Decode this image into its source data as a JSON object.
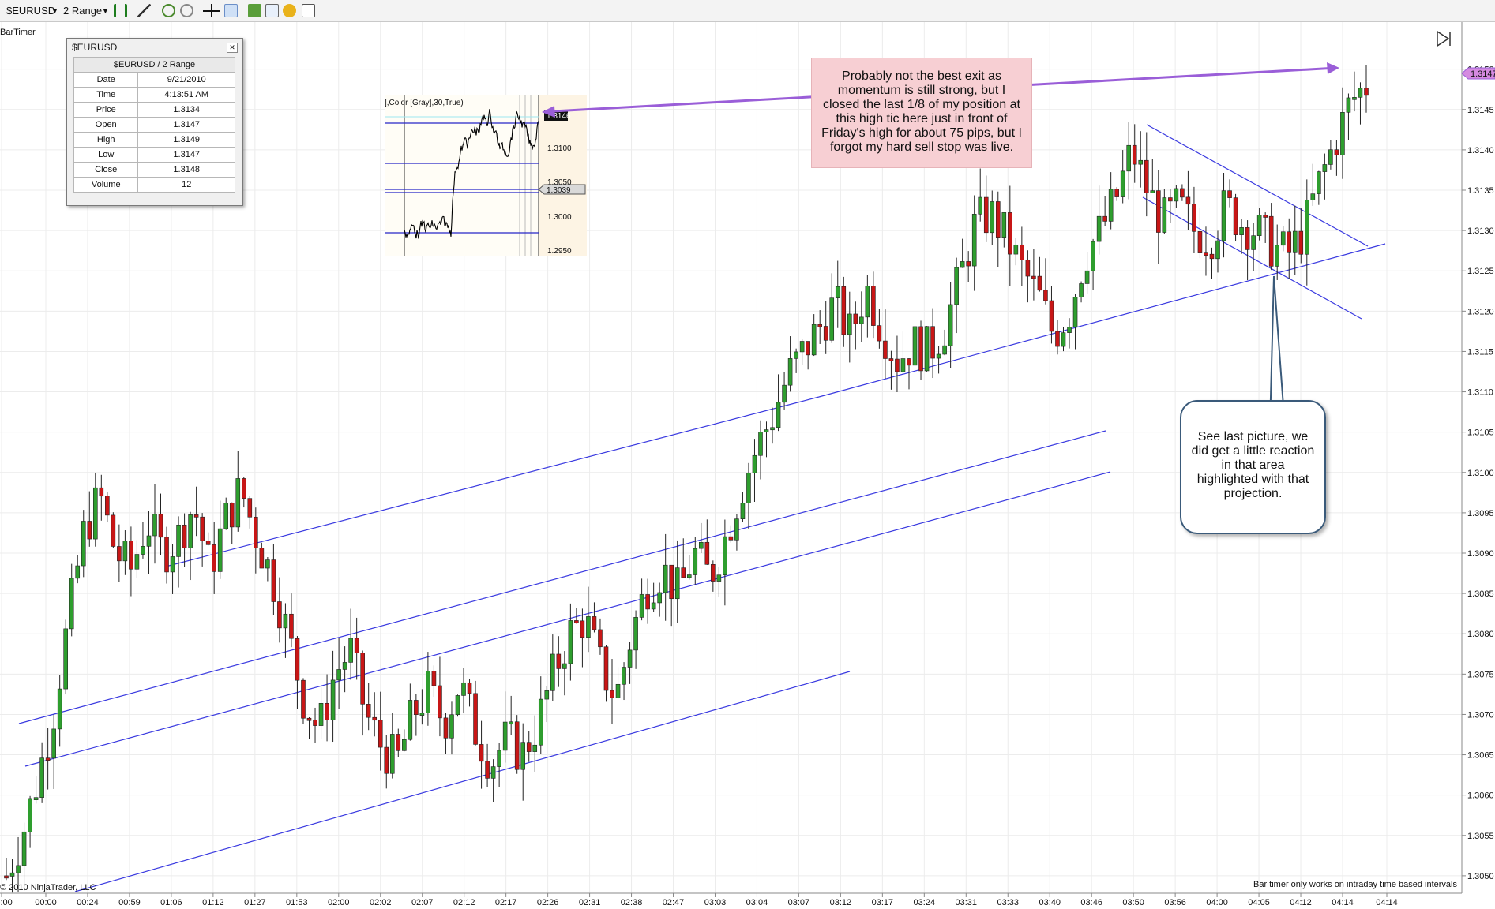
{
  "toolbar": {
    "instrument": "$EURUSD",
    "period": "2 Range"
  },
  "indicator_label": "BarTimer",
  "data_box": {
    "title": "$EURUSD",
    "header": "$EURUSD / 2 Range",
    "rows": [
      {
        "label": "Date",
        "value": "9/21/2010"
      },
      {
        "label": "Time",
        "value": "4:13:51 AM"
      },
      {
        "label": "Price",
        "value": "1.3134"
      },
      {
        "label": "Open",
        "value": "1.3147"
      },
      {
        "label": "High",
        "value": "1.3149"
      },
      {
        "label": "Low",
        "value": "1.3147"
      },
      {
        "label": "Close",
        "value": "1.3148"
      },
      {
        "label": "Volume",
        "value": "12"
      }
    ]
  },
  "note_exit": "Probably not the best exit as momentum is still strong, but I closed the last 1/8 of my position at this high tic here just in front of Friday's high for about 75 pips, but I forgot my hard sell stop was live.",
  "note_reaction": "See last picture, we did get a little reaction in that area highlighted with that projection.",
  "copyright": "© 2010 NinjaTrader, LLC",
  "bar_timer_message": "Bar timer only works on intraday time based intervals",
  "colors": {
    "up_candle": "#2e9e2e",
    "down_candle": "#c81616",
    "trendline": "#3a3ae0",
    "arrow": "#9a5ed8",
    "price_marker": "#d58ae0"
  },
  "chart_data": {
    "type": "candlestick",
    "symbol": "$EURUSD",
    "interval": "2 Range",
    "y_range": [
      1.3045,
      1.3153
    ],
    "y_ticks": [
      "1.3150",
      "1.3145",
      "1.3140",
      "1.3135",
      "1.3130",
      "1.3125",
      "1.3120",
      "1.3115",
      "1.3110",
      "1.3105",
      "1.3100",
      "1.3095",
      "1.3090",
      "1.3085",
      "1.3080",
      "1.3075",
      "1.3070",
      "1.3065",
      "1.3060",
      "1.3055",
      "1.3050"
    ],
    "x_ticks": [
      "00:00",
      "00:00",
      "00:24",
      "00:59",
      "01:06",
      "01:12",
      "01:27",
      "01:53",
      "02:00",
      "02:02",
      "02:07",
      "02:12",
      "02:17",
      "02:26",
      "02:31",
      "02:38",
      "02:47",
      "03:03",
      "03:04",
      "03:07",
      "03:12",
      "03:17",
      "03:24",
      "03:31",
      "03:33",
      "03:40",
      "03:46",
      "03:50",
      "03:56",
      "04:00",
      "04:05",
      "04:12",
      "04:14",
      "04:14"
    ],
    "last_price": "1.3147",
    "close_path": [
      1.305,
      1.3055,
      1.3062,
      1.307,
      1.3082,
      1.3093,
      1.3097,
      1.309,
      1.3088,
      1.3094,
      1.309,
      1.3092,
      1.3096,
      1.3088,
      1.3094,
      1.3098,
      1.3092,
      1.3087,
      1.308,
      1.3072,
      1.3068,
      1.3075,
      1.3078,
      1.307,
      1.3066,
      1.3064,
      1.307,
      1.3073,
      1.3069,
      1.3074,
      1.3068,
      1.3064,
      1.3067,
      1.3065,
      1.3069,
      1.3075,
      1.308,
      1.3082,
      1.3076,
      1.3072,
      1.308,
      1.3086,
      1.3088,
      1.3085,
      1.309,
      1.3087,
      1.3092,
      1.3098,
      1.3103,
      1.3107,
      1.3112,
      1.3115,
      1.3118,
      1.3121,
      1.3117,
      1.3123,
      1.3118,
      1.3114,
      1.3116,
      1.3115,
      1.3118,
      1.3124,
      1.3131,
      1.3132,
      1.3129,
      1.3125,
      1.3122,
      1.3117,
      1.312,
      1.3127,
      1.313,
      1.3134,
      1.314,
      1.3135,
      1.3131,
      1.3133,
      1.313,
      1.3129,
      1.3133,
      1.3131,
      1.313,
      1.3128,
      1.3127,
      1.313,
      1.3136,
      1.3141,
      1.3146,
      1.3148
    ],
    "inset": {
      "label": "],Color [Gray],30,True)",
      "y_ticks": [
        "1.3100",
        "1.3050",
        "1.3000",
        "1.2950"
      ],
      "markers": [
        "1.3146",
        "1.3039"
      ]
    }
  }
}
